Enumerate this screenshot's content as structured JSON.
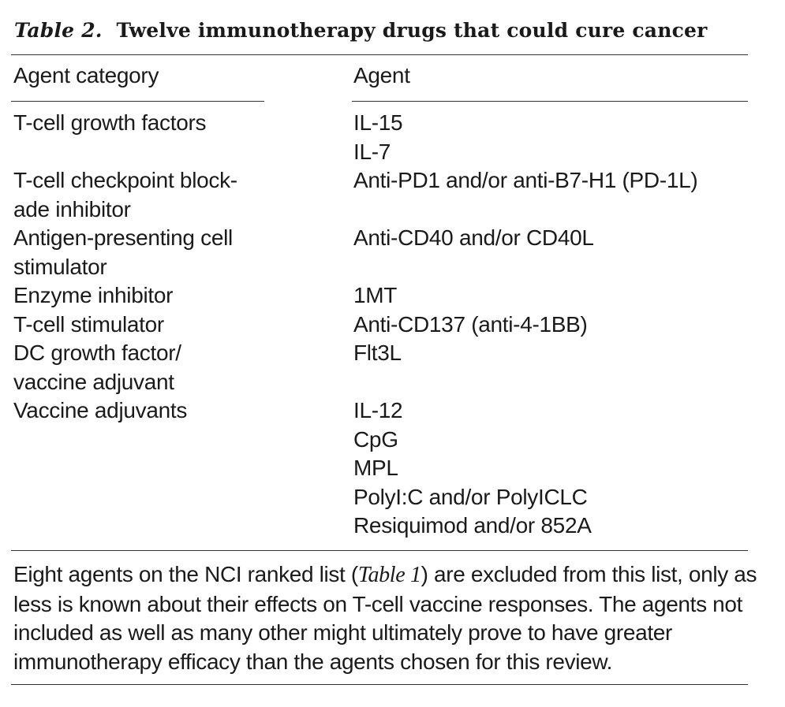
{
  "table": {
    "label": "Table 2.",
    "title": "Twelve immunotherapy drugs that could cure cancer",
    "headers": {
      "category": "Agent category",
      "agent": "Agent"
    },
    "rows": [
      {
        "category": [
          "T-cell growth factors"
        ],
        "agents": [
          "IL-15",
          "IL-7"
        ]
      },
      {
        "category": [
          "T-cell checkpoint block-",
          "ade inhibitor"
        ],
        "agents": [
          "Anti-PD1 and/or anti-B7-H1 (PD-1L)"
        ]
      },
      {
        "category": [
          "Antigen-presenting cell",
          "stimulator"
        ],
        "agents": [
          "Anti-CD40 and/or CD40L"
        ]
      },
      {
        "category": [
          "Enzyme inhibitor"
        ],
        "agents": [
          "1MT"
        ]
      },
      {
        "category": [
          "T-cell stimulator"
        ],
        "agents": [
          "Anti-CD137 (anti-4-1BB)"
        ]
      },
      {
        "category": [
          "DC growth factor/",
          "vaccine adjuvant"
        ],
        "agents": [
          "Flt3L"
        ]
      },
      {
        "category": [
          "Vaccine adjuvants"
        ],
        "agents": [
          "IL-12",
          "CpG",
          "MPL",
          "PolyI:C and/or PolyICLC",
          "Resiquimod and/or 852A"
        ]
      }
    ],
    "footnote": {
      "before": "Eight agents on the NCI ranked list (",
      "ref": "Table 1",
      "after": ") are excluded from this list, only as less is known about their effects on T-cell vaccine responses. The agents not included as well as many other might ultimately prove to have greater immunotherapy efficacy than the agents chosen for this review."
    }
  }
}
